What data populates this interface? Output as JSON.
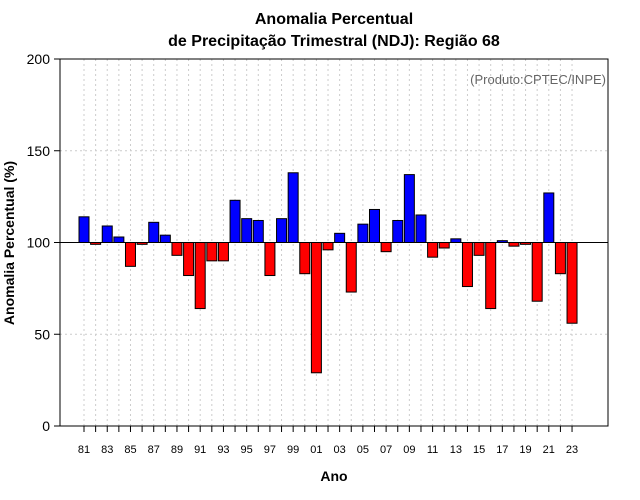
{
  "chart_data": {
    "type": "bar",
    "title": [
      "Anomalia Percentual",
      "de Precipitação Trimestral (NDJ): Região 68"
    ],
    "credit": "(Produto:CPTEC/INPE)",
    "xlabel": "Ano",
    "ylabel": "Anomalia Percentual (%)",
    "ylim": [
      0,
      200
    ],
    "yticks": [
      0,
      50,
      100,
      150,
      200
    ],
    "baseline": 100,
    "grid": true,
    "colors": {
      "above": "#0000ff",
      "below": "#ff0000",
      "edge": "#000000",
      "grid": "#cccccc",
      "baseline": "#000000"
    },
    "categories": [
      "81",
      "82",
      "83",
      "84",
      "85",
      "86",
      "87",
      "88",
      "89",
      "90",
      "91",
      "92",
      "93",
      "94",
      "95",
      "96",
      "97",
      "98",
      "99",
      "00",
      "01",
      "02",
      "03",
      "04",
      "05",
      "06",
      "07",
      "08",
      "09",
      "10",
      "11",
      "12",
      "13",
      "14",
      "15",
      "16",
      "17",
      "18",
      "19",
      "20",
      "21",
      "22",
      "23"
    ],
    "x_tick_labels": [
      "81",
      "83",
      "85",
      "87",
      "89",
      "91",
      "93",
      "95",
      "97",
      "99",
      "01",
      "03",
      "05",
      "07",
      "09",
      "11",
      "13",
      "15",
      "17",
      "19",
      "21",
      "23"
    ],
    "values": [
      114,
      99,
      109,
      103,
      87,
      99,
      111,
      104,
      93,
      82,
      64,
      90,
      90,
      123,
      113,
      112,
      82,
      113,
      138,
      83,
      29,
      96,
      105,
      73,
      110,
      118,
      95,
      112,
      137,
      115,
      92,
      97,
      102,
      76,
      93,
      64,
      101,
      98,
      99,
      68,
      127,
      83,
      56
    ]
  }
}
